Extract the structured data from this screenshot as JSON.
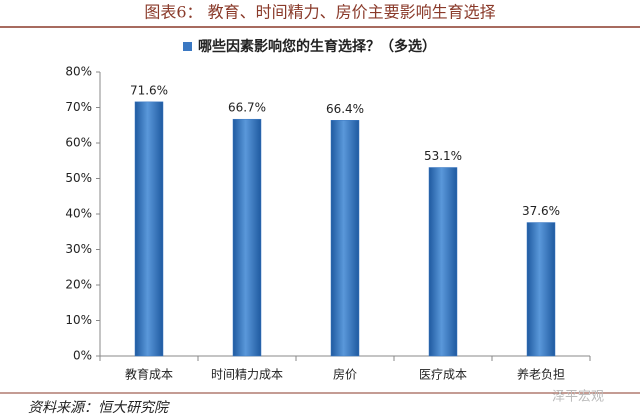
{
  "chart_data": {
    "type": "bar",
    "title": "图表6：   教育、时间精力、房价主要影响生育选择",
    "categories": [
      "教育成本",
      "时间精力成本",
      "房价",
      "医疗成本",
      "养老负担"
    ],
    "series": [
      {
        "name": "哪些因素影响您的生育选择？（多选）",
        "color": "#3b78c2",
        "values": [
          71.6,
          66.7,
          66.4,
          53.1,
          37.6
        ],
        "value_labels": [
          "71.6%",
          "66.7%",
          "66.4%",
          "53.1%",
          "37.6%"
        ]
      }
    ],
    "ylim": [
      0,
      80
    ],
    "yticks": [
      {
        "value": 0,
        "label": "0%"
      },
      {
        "value": 10,
        "label": "10%"
      },
      {
        "value": 20,
        "label": "20%"
      },
      {
        "value": 30,
        "label": "30%"
      },
      {
        "value": 40,
        "label": "40%"
      },
      {
        "value": 50,
        "label": "50%"
      },
      {
        "value": 60,
        "label": "60%"
      },
      {
        "value": 70,
        "label": "70%"
      },
      {
        "value": 80,
        "label": "80%"
      }
    ],
    "grid": false,
    "source": "资料来源：恒大研究院",
    "watermark": "泽平宏观"
  }
}
